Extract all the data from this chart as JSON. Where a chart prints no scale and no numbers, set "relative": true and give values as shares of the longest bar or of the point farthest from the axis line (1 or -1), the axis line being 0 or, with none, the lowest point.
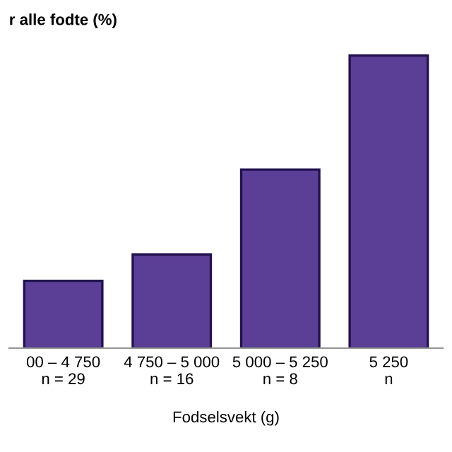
{
  "chart_data": {
    "type": "bar",
    "relative": true,
    "title": "r alle fodte (%)",
    "xlabel": "Fodselsvekt (g)",
    "categories": [
      "00 – 4 750\nn = 29",
      "4 750 – 5 000\nn = 16",
      "5 000 – 5 250\nn = 8",
      "5 250\nn"
    ],
    "values": [
      0.23,
      0.32,
      0.61,
      1
    ],
    "color": "#5b3e96",
    "grid": false,
    "legend": false
  }
}
